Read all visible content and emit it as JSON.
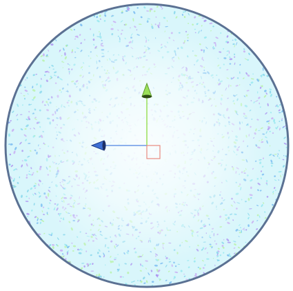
{
  "viewport": {
    "background": "#ffffff"
  },
  "sphere": {
    "outline_color": "#5b7193",
    "base_color": "#d9f6fb",
    "speckle_colors": [
      "#8fe6ee",
      "#a98cf0",
      "#7fd3ea",
      "#b6f2a0",
      "#6fb5f0",
      "#c7a6f2"
    ]
  },
  "gizmo": {
    "y_axis_color": "#9be05a",
    "x_axis_color": "#3d6fd4",
    "center_color": "#e88a80",
    "y_axis_icon": "cone-arrow-icon",
    "x_axis_icon": "cone-arrow-icon",
    "center_icon": "square-handle-icon"
  }
}
